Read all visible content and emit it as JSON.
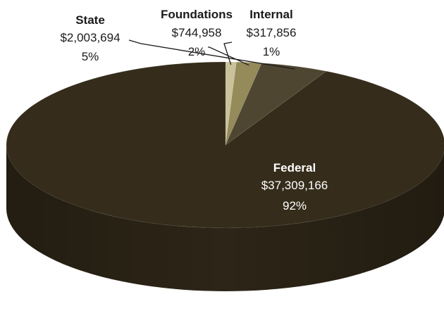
{
  "chart_data": {
    "type": "pie",
    "style": "3d",
    "title": "",
    "slices": [
      {
        "name": "Federal",
        "value": 37309166,
        "value_label": "$37,309,166",
        "percent_label": "92%",
        "color": "#352c1b"
      },
      {
        "name": "State",
        "value": 2003694,
        "value_label": "$2,003,694",
        "percent_label": "5%",
        "color": "#4e4630"
      },
      {
        "name": "Foundations",
        "value": 744958,
        "value_label": "$744,958",
        "percent_label": "2%",
        "color": "#948a5a"
      },
      {
        "name": "Internal",
        "value": 317856,
        "value_label": "$317,856",
        "percent_label": "1%",
        "color": "#c9c29a"
      }
    ],
    "legend": "none",
    "data_labels": "on"
  }
}
